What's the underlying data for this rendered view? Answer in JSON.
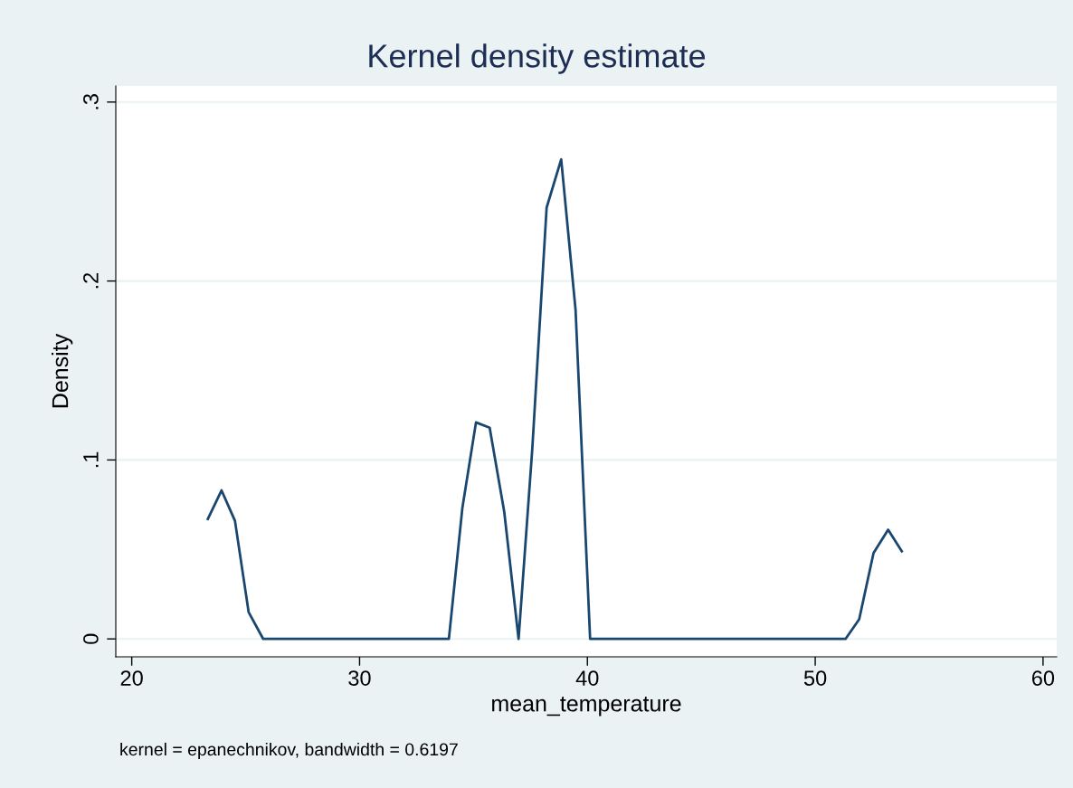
{
  "chart_data": {
    "type": "line",
    "title": "Kernel density estimate",
    "xlabel": "mean_temperature",
    "ylabel": "Density",
    "annotations": [
      "kernel = epanechnikov, bandwidth = 0.6197"
    ],
    "x": [
      23.34,
      23.94,
      24.53,
      25.13,
      25.77,
      33.92,
      34.51,
      35.11,
      35.71,
      36.35,
      36.98,
      37.58,
      38.21,
      38.85,
      39.48,
      40.12,
      51.33,
      51.93,
      52.56,
      53.2,
      53.8
    ],
    "series": [
      {
        "color": "#1a476f",
        "values": [
          0.067,
          0.083,
          0.066,
          0.015,
          0,
          0,
          0.073,
          0.121,
          0.118,
          0.071,
          0,
          0.106,
          0.241,
          0.268,
          0.184,
          0,
          0,
          0.011,
          0.048,
          0.061,
          0.049
        ]
      }
    ],
    "xlim": [
      19.3,
      60.6
    ],
    "ylim": [
      -0.01,
      0.309
    ],
    "xticks": [
      20,
      30,
      40,
      50,
      60
    ],
    "yticks": [
      {
        "value": 0,
        "label": "0"
      },
      {
        "value": 0.1,
        "label": ".1"
      },
      {
        "value": 0.2,
        "label": ".2"
      },
      {
        "value": 0.3,
        "label": ".3"
      }
    ],
    "grid": "y",
    "marker": "none",
    "line_style": "solid"
  }
}
